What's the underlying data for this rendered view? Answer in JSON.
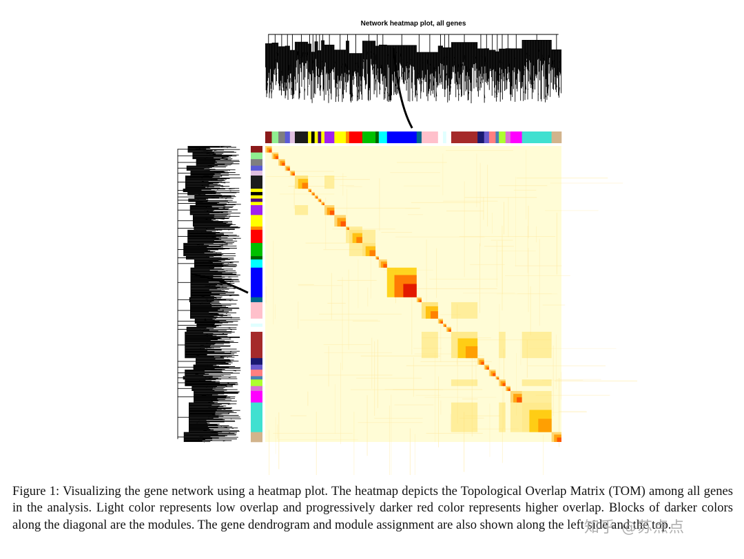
{
  "figure": {
    "title": "Network heatmap plot, all genes"
  },
  "caption": {
    "text": "Figure 1: Visualizing the gene network using a heatmap plot. The heatmap depicts the Topological Overlap Matrix (TOM) among all genes in the analysis.  Light color represents low overlap and progressively darker red color represents higher overlap. Blocks of darker colors along the diagonal are the modules.  The gene dendrogram and module assignment are also shown along the left side and the top."
  },
  "watermark": {
    "text": "知乎 @苏点点"
  },
  "chart_data": {
    "type": "heatmap",
    "title": "Network heatmap plot, all genes",
    "xlabel": "",
    "ylabel": "",
    "matrix": "Topological Overlap Matrix (TOM)",
    "color_scale": {
      "low": "#fffcd6",
      "mid": "#ffd000",
      "high": "#e01000"
    },
    "modules": [
      {
        "color": "#8b1a1a",
        "size": 2
      },
      {
        "color": "#90ee90",
        "size": 2
      },
      {
        "color": "#7f7f7f",
        "size": 2
      },
      {
        "color": "#5b5bd6",
        "size": 1.5
      },
      {
        "color": "#e0c0e0",
        "size": 1.5
      },
      {
        "color": "#1c1c1c",
        "size": 4
      },
      {
        "color": "#ffff00",
        "size": 1
      },
      {
        "color": "#000000",
        "size": 1
      },
      {
        "color": "#ffff00",
        "size": 1
      },
      {
        "color": "#4b0082",
        "size": 1
      },
      {
        "color": "#ffff00",
        "size": 1
      },
      {
        "color": "#a020f0",
        "size": 3
      },
      {
        "color": "#ffff00",
        "size": 3.5
      },
      {
        "color": "#ff8c00",
        "size": 1
      },
      {
        "color": "#ff0000",
        "size": 4
      },
      {
        "color": "#00c000",
        "size": 4
      },
      {
        "color": "#006400",
        "size": 1
      },
      {
        "color": "#00ffff",
        "size": 2.5
      },
      {
        "color": "#0000ff",
        "size": 9
      },
      {
        "color": "#00688b",
        "size": 1.5
      },
      {
        "color": "#ffc0cb",
        "size": 5
      },
      {
        "color": "#ffffff",
        "size": 1.5
      },
      {
        "color": "#e0ffff",
        "size": 1
      },
      {
        "color": "#ffffff",
        "size": 1.5
      },
      {
        "color": "#a52a2a",
        "size": 8
      },
      {
        "color": "#191970",
        "size": 2
      },
      {
        "color": "#6a5acd",
        "size": 1.5
      },
      {
        "color": "#ff7f7f",
        "size": 2
      },
      {
        "color": "#4682b4",
        "size": 1
      },
      {
        "color": "#adff2f",
        "size": 2
      },
      {
        "color": "#da70d6",
        "size": 1.5
      },
      {
        "color": "#ff00ff",
        "size": 3.5
      },
      {
        "color": "#40e0d0",
        "size": 9
      },
      {
        "color": "#d2b48c",
        "size": 3
      }
    ]
  }
}
